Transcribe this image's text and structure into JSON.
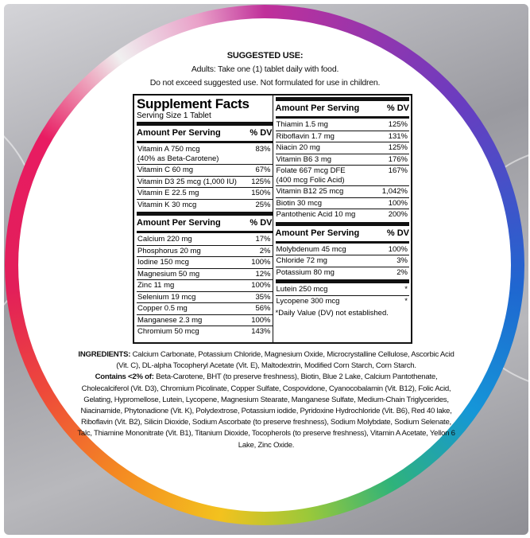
{
  "suggested_use": {
    "title": "SUGGESTED USE:",
    "line1": "Adults: Take one (1) tablet daily with food.",
    "line2": "Do not exceed suggested use. Not formulated for use in children."
  },
  "facts": {
    "title": "Supplement Facts",
    "serving_size": "Serving Size 1 Tablet",
    "left_sections": [
      {
        "header": "Amount Per Serving",
        "dv": "% DV",
        "rows": [
          {
            "name": "Vitamin A 750 mcg\n  (40% as Beta-Carotene)",
            "dv": "83%"
          },
          {
            "name": "Vitamin C 60 mg",
            "dv": "67%"
          },
          {
            "name": "Vitamin D3 25 mcg (1,000 IU)",
            "dv": "125%"
          },
          {
            "name": "Vitamin E 22.5 mg",
            "dv": "150%"
          },
          {
            "name": "Vitamin K 30 mcg",
            "dv": "25%"
          }
        ]
      },
      {
        "header": "Amount Per Serving",
        "dv": "% DV",
        "rows": [
          {
            "name": "Calcium 220 mg",
            "dv": "17%"
          },
          {
            "name": "Phosphorus 20 mg",
            "dv": "2%"
          },
          {
            "name": "Iodine 150 mcg",
            "dv": "100%"
          },
          {
            "name": "Magnesium 50 mg",
            "dv": "12%"
          },
          {
            "name": "Zinc 11 mg",
            "dv": "100%"
          },
          {
            "name": "Selenium 19 mcg",
            "dv": "35%"
          },
          {
            "name": "Copper 0.5 mg",
            "dv": "56%"
          },
          {
            "name": "Manganese 2.3 mg",
            "dv": "100%"
          },
          {
            "name": "Chromium 50 mcg",
            "dv": "143%"
          }
        ]
      }
    ],
    "right_sections": [
      {
        "header": "Amount Per Serving",
        "dv": "% DV",
        "rows": [
          {
            "name": "Thiamin 1.5 mg",
            "dv": "125%"
          },
          {
            "name": "Riboflavin 1.7 mg",
            "dv": "131%"
          },
          {
            "name": "Niacin 20 mg",
            "dv": "125%"
          },
          {
            "name": "Vitamin B6 3 mg",
            "dv": "176%"
          },
          {
            "name": "Folate 667 mcg DFE\n  (400 mcg Folic Acid)",
            "dv": "167%"
          },
          {
            "name": "Vitamin B12 25 mcg",
            "dv": "1,042%"
          },
          {
            "name": "Biotin 30 mcg",
            "dv": "100%"
          },
          {
            "name": "Pantothenic Acid 10 mg",
            "dv": "200%"
          }
        ]
      },
      {
        "header": "Amount Per Serving",
        "dv": "% DV",
        "rows": [
          {
            "name": "Molybdenum 45 mcg",
            "dv": "100%"
          },
          {
            "name": "Chloride 72 mg",
            "dv": "3%"
          },
          {
            "name": "Potassium 80 mg",
            "dv": "2%"
          }
        ]
      },
      {
        "header": "",
        "dv": "",
        "rows": [
          {
            "name": "Lutein 250 mcg",
            "dv": "*"
          },
          {
            "name": "Lycopene 300 mcg",
            "dv": "*"
          }
        ]
      }
    ],
    "footnote": "*Daily Value (DV) not established."
  },
  "ingredients": {
    "label": "INGREDIENTS:",
    "main": "Calcium Carbonate, Potassium Chloride, Magnesium Oxide, Microcrystalline Cellulose, Ascorbic Acid (Vit. C), DL-alpha Tocopheryl Acetate (Vit. E), Maltodextrin, Modified Corn Starch, Corn Starch.",
    "contains_label": "Contains <2% of:",
    "contains": "Beta-Carotene, BHT (to preserve freshness), Biotin, Blue 2 Lake, Calcium Pantothenate, Cholecalciferol (Vit. D3), Chromium Picolinate, Copper Sulfate, Cospovidone, Cyanocobalamin (Vit. B12), Folic Acid, Gelating, Hypromellose, Lutein, Lycopene, Magnesium Stearate, Manganese Sulfate, Medium-Chain Triglycerides, Niacinamide, Phytonadione (Vit. K), Polydextrose, Potassium iodide, Pyridoxine Hydrochloride (Vit. B6), Red 40 lake, Riboflavin (Vit. B2), Silicin Dioxide, Sodium Ascorbate (to preserve freshness), Sodium Molybdate, Sodium Selenate, Talc, Thiamine Mononitrate (Vit. B1), Titanium Dioxide, Tocopherols (to preserve freshness), Vitamin A Acetate, Yellon 6 Lake, Zinc Oxide."
  }
}
